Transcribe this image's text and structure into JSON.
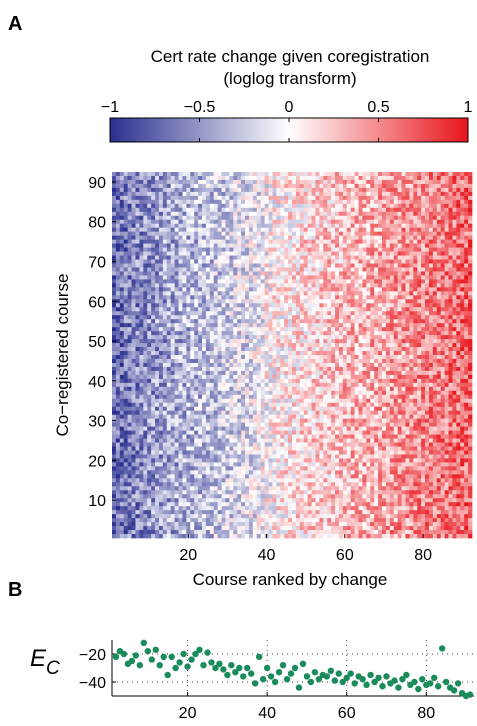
{
  "panels": {
    "a": "A",
    "b": "B"
  },
  "chart_data": [
    {
      "type": "heatmap",
      "panel": "A",
      "title": "Cert rate change given coregistration",
      "subtitle": "(loglog transform)",
      "xlabel": "Course ranked by change",
      "ylabel": "Co−registered course",
      "xlim": [
        1,
        92
      ],
      "ylim": [
        1,
        92
      ],
      "n_cols": 92,
      "n_rows": 92,
      "xticks": [
        20,
        40,
        60,
        80
      ],
      "yticks": [
        10,
        20,
        30,
        40,
        50,
        60,
        70,
        80,
        90
      ],
      "colorbar": {
        "range": [
          -1,
          1
        ],
        "ticks": [
          -1,
          -0.5,
          0,
          0.5,
          1
        ],
        "tick_labels": [
          "−1",
          "−0.5",
          "0",
          "0.5",
          "1"
        ],
        "colors": {
          "low": "#2a2f8f",
          "mid": "#ffffff",
          "high": "#e8151b"
        }
      },
      "column_mean_profile": {
        "x": [
          1,
          10,
          20,
          30,
          38,
          40,
          45,
          50,
          60,
          70,
          80,
          92
        ],
        "value": [
          -0.7,
          -0.5,
          -0.35,
          -0.22,
          -0.1,
          0.0,
          0.08,
          0.15,
          0.28,
          0.38,
          0.5,
          0.65
        ]
      },
      "grid": false
    },
    {
      "type": "scatter",
      "panel": "B",
      "ylabel": "E",
      "ylabel_sub": "C",
      "xlim": [
        1,
        92
      ],
      "ylim": [
        -50,
        -10
      ],
      "xticks": [
        20,
        40,
        60,
        80
      ],
      "yticks": [
        -20,
        -40
      ],
      "ytick_labels": [
        "−20",
        "−40"
      ],
      "grid": true,
      "color": "#1a8c5b",
      "x": [
        2,
        3,
        4,
        5,
        6,
        7,
        8,
        9,
        10,
        11,
        12,
        13,
        14,
        15,
        16,
        17,
        18,
        19,
        20,
        21,
        22,
        23,
        24,
        25,
        26,
        27,
        28,
        29,
        30,
        31,
        32,
        33,
        34,
        35,
        36,
        37,
        38,
        39,
        40,
        41,
        42,
        43,
        44,
        45,
        46,
        47,
        48,
        49,
        50,
        51,
        52,
        53,
        54,
        55,
        56,
        57,
        58,
        59,
        60,
        61,
        62,
        63,
        64,
        65,
        66,
        67,
        68,
        69,
        70,
        71,
        72,
        73,
        74,
        75,
        76,
        77,
        78,
        79,
        80,
        81,
        82,
        83,
        84,
        85,
        86,
        87,
        88,
        89,
        90,
        91
      ],
      "y": [
        -22,
        -18,
        -20,
        -27,
        -25,
        -21,
        -28,
        -12,
        -18,
        -24,
        -17,
        -28,
        -22,
        -35,
        -22,
        -30,
        -26,
        -20,
        -29,
        -24,
        -20,
        -17,
        -28,
        -19,
        -26,
        -30,
        -27,
        -31,
        -35,
        -28,
        -33,
        -30,
        -36,
        -30,
        -34,
        -41,
        -22,
        -38,
        -30,
        -36,
        -40,
        -33,
        -28,
        -38,
        -34,
        -30,
        -44,
        -27,
        -36,
        -40,
        -33,
        -38,
        -35,
        -36,
        -32,
        -39,
        -34,
        -40,
        -37,
        -34,
        -41,
        -36,
        -38,
        -42,
        -35,
        -40,
        -37,
        -43,
        -36,
        -41,
        -39,
        -44,
        -38,
        -35,
        -42,
        -40,
        -45,
        -38,
        -42,
        -41,
        -37,
        -43,
        -16,
        -40,
        -44,
        -46,
        -41,
        -48,
        -50,
        -49
      ]
    }
  ]
}
